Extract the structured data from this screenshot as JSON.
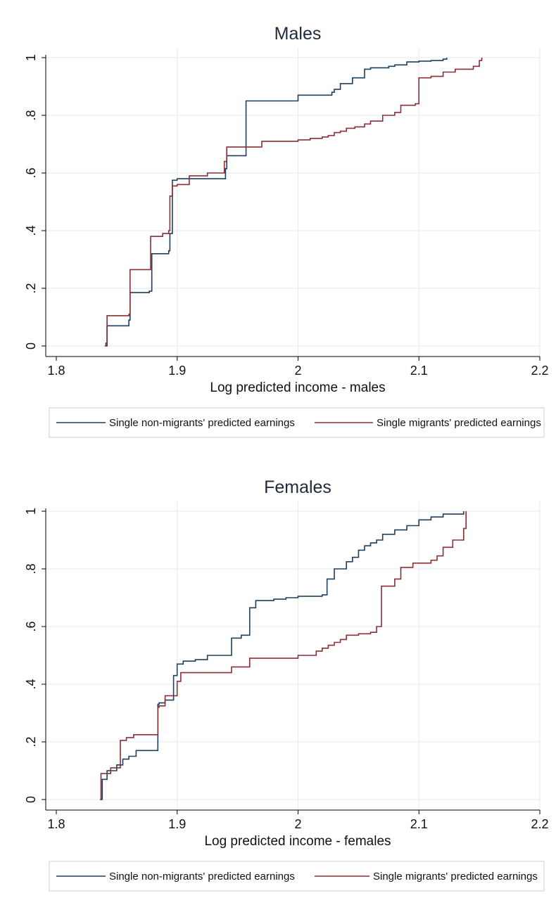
{
  "chart_data": [
    {
      "type": "line",
      "title": "Males",
      "xlabel": "Log predicted income - males",
      "ylabel": "",
      "xlim": [
        1.8,
        2.2
      ],
      "ylim": [
        0,
        1
      ],
      "xticks": [
        "1.8",
        "1.9",
        "2",
        "2.1",
        "2.2"
      ],
      "yticks": [
        "0",
        ".2",
        ".4",
        ".6",
        ".8",
        "1"
      ],
      "grid": "vertical and horizontal",
      "legend": "bottom",
      "series": [
        {
          "name": "Single non-migrants' predicted earnings",
          "color": "#1f3f5f",
          "x": [
            1.841,
            1.842,
            1.86,
            1.861,
            1.877,
            1.878,
            1.879,
            1.893,
            1.894,
            1.896,
            1.9,
            1.939,
            1.94,
            1.941,
            1.955,
            1.957,
            1.99,
            2.0,
            2.02,
            2.028,
            2.03,
            2.035,
            2.045,
            2.055,
            2.06,
            2.075,
            2.08,
            2.09,
            2.1,
            2.11,
            2.12,
            2.123
          ],
          "y": [
            0.0,
            0.07,
            0.09,
            0.185,
            0.19,
            0.19,
            0.32,
            0.33,
            0.39,
            0.575,
            0.58,
            0.58,
            0.615,
            0.66,
            0.66,
            0.85,
            0.85,
            0.87,
            0.87,
            0.88,
            0.89,
            0.91,
            0.93,
            0.96,
            0.965,
            0.97,
            0.975,
            0.985,
            0.988,
            0.99,
            0.995,
            1.0
          ]
        },
        {
          "name": "Single migrants' predicted earnings",
          "color": "#8b2e36",
          "x": [
            1.84,
            1.841,
            1.842,
            1.86,
            1.861,
            1.872,
            1.878,
            1.888,
            1.893,
            1.894,
            1.896,
            1.9,
            1.91,
            1.925,
            1.939,
            1.941,
            1.956,
            1.97,
            1.985,
            2.0,
            2.01,
            2.02,
            2.025,
            2.03,
            2.035,
            2.04,
            2.047,
            2.055,
            2.06,
            2.07,
            2.08,
            2.085,
            2.097,
            2.1,
            2.11,
            2.12,
            2.13,
            2.145,
            2.15,
            2.152
          ],
          "y": [
            0.0,
            0.01,
            0.105,
            0.11,
            0.265,
            0.265,
            0.38,
            0.39,
            0.4,
            0.52,
            0.555,
            0.56,
            0.59,
            0.6,
            0.64,
            0.69,
            0.69,
            0.71,
            0.71,
            0.715,
            0.72,
            0.725,
            0.73,
            0.74,
            0.745,
            0.755,
            0.76,
            0.77,
            0.78,
            0.8,
            0.81,
            0.835,
            0.84,
            0.93,
            0.935,
            0.95,
            0.96,
            0.97,
            0.99,
            1.0
          ]
        }
      ]
    },
    {
      "type": "line",
      "title": "Females",
      "xlabel": "Log predicted income - females",
      "ylabel": "",
      "xlim": [
        1.8,
        2.2
      ],
      "ylim": [
        0,
        1
      ],
      "xticks": [
        "1.8",
        "1.9",
        "2",
        "2.1",
        "2.2"
      ],
      "yticks": [
        "0",
        ".2",
        ".4",
        ".6",
        ".8",
        "1"
      ],
      "grid": "vertical and horizontal",
      "legend": "bottom",
      "series": [
        {
          "name": "Single non-migrants' predicted earnings",
          "color": "#1f3f5f",
          "x": [
            1.837,
            1.838,
            1.842,
            1.85,
            1.855,
            1.86,
            1.866,
            1.876,
            1.884,
            1.885,
            1.89,
            1.897,
            1.9,
            1.905,
            1.915,
            1.925,
            1.945,
            1.953,
            1.96,
            1.965,
            1.98,
            1.99,
            2.0,
            2.02,
            2.024,
            2.03,
            2.04,
            2.045,
            2.05,
            2.055,
            2.06,
            2.065,
            2.07,
            2.08,
            2.09,
            2.1,
            2.11,
            2.12,
            2.137
          ],
          "y": [
            0.0,
            0.07,
            0.1,
            0.12,
            0.14,
            0.15,
            0.17,
            0.17,
            0.33,
            0.335,
            0.345,
            0.43,
            0.47,
            0.48,
            0.485,
            0.5,
            0.56,
            0.57,
            0.665,
            0.69,
            0.695,
            0.7,
            0.705,
            0.71,
            0.765,
            0.8,
            0.825,
            0.84,
            0.865,
            0.88,
            0.89,
            0.9,
            0.92,
            0.935,
            0.95,
            0.97,
            0.98,
            0.99,
            1.0
          ]
        },
        {
          "name": "Single migrants' predicted earnings",
          "color": "#8b2e36",
          "x": [
            1.836,
            1.837,
            1.845,
            1.853,
            1.858,
            1.864,
            1.884,
            1.885,
            1.89,
            1.9,
            1.903,
            1.945,
            1.96,
            2.0,
            2.015,
            2.02,
            2.025,
            2.03,
            2.035,
            2.04,
            2.05,
            2.06,
            2.065,
            2.069,
            2.08,
            2.085,
            2.095,
            2.11,
            2.115,
            2.12,
            2.128,
            2.137,
            2.139
          ],
          "y": [
            0.0,
            0.09,
            0.11,
            0.205,
            0.215,
            0.225,
            0.32,
            0.325,
            0.36,
            0.41,
            0.44,
            0.46,
            0.49,
            0.5,
            0.515,
            0.525,
            0.535,
            0.545,
            0.555,
            0.57,
            0.575,
            0.58,
            0.6,
            0.74,
            0.765,
            0.805,
            0.82,
            0.83,
            0.845,
            0.875,
            0.9,
            0.94,
            1.0
          ]
        }
      ]
    }
  ]
}
